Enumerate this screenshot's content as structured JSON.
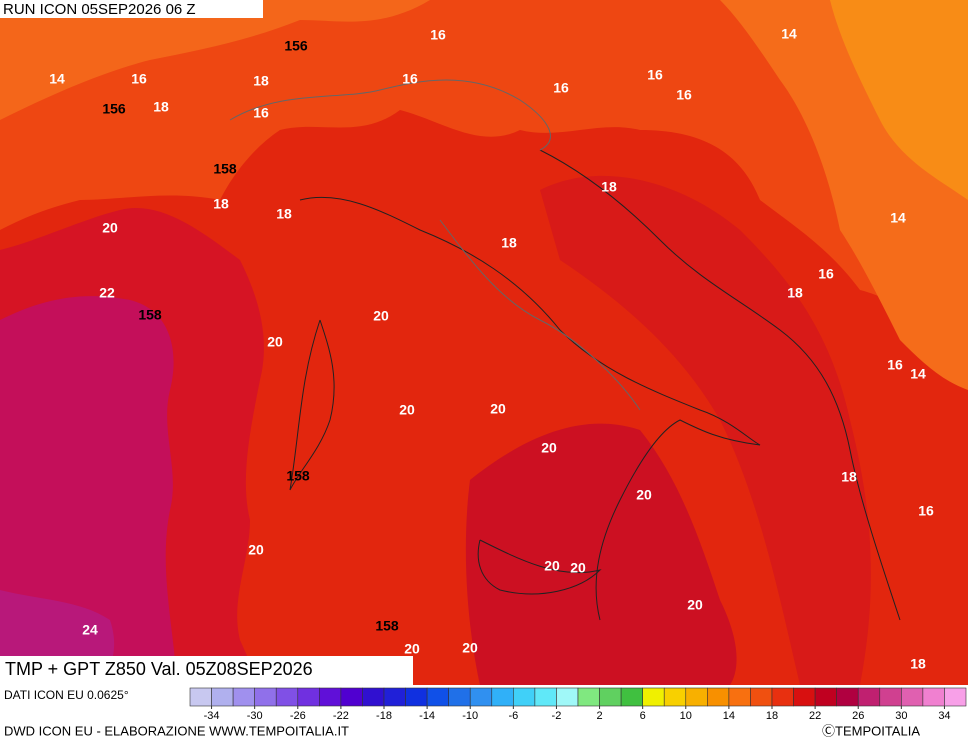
{
  "header": {
    "run": "RUN ICON 05SEP2026 06 Z"
  },
  "map": {
    "title": "TMP + GPT Z850 Val. 05Z08SEP2026",
    "contour_labels": [
      16,
      14,
      156,
      14,
      16,
      18,
      16,
      16,
      16,
      16,
      156,
      18,
      16,
      158,
      18,
      18,
      18,
      14,
      20,
      18,
      16,
      22,
      18,
      158,
      20,
      20,
      16,
      14,
      20,
      20,
      20,
      158,
      18,
      20,
      16,
      20,
      20,
      20,
      20,
      24,
      158,
      20,
      20,
      18
    ]
  },
  "footer": {
    "source": "DATI ICON EU 0.0625°",
    "credit": "DWD ICON EU - ELABORAZIONE WWW.TEMPOITALIA.IT",
    "copyright": "ⒸTEMPOITALIA"
  },
  "colorbar": {
    "range": [
      -36,
      36
    ],
    "ticks": [
      -34,
      -30,
      -26,
      -22,
      -18,
      -14,
      -10,
      -6,
      -2,
      2,
      6,
      10,
      14,
      18,
      22,
      26,
      30,
      34
    ],
    "colors": [
      "#c8c8f0",
      "#b0b0ee",
      "#a090ee",
      "#9070ea",
      "#8050e6",
      "#7030e0",
      "#6010d8",
      "#5000d0",
      "#3010d0",
      "#2020d8",
      "#1030e0",
      "#1050e8",
      "#2070e8",
      "#3090f0",
      "#30b0f8",
      "#40d0f8",
      "#60e8f8",
      "#a0f8f8",
      "#80e880",
      "#60d060",
      "#40c040",
      "#f0f000",
      "#f8d000",
      "#f8b000",
      "#f89000",
      "#f87010",
      "#f05010",
      "#e83010",
      "#d81010",
      "#c00020",
      "#b00040",
      "#c02070",
      "#d04090",
      "#e060b0",
      "#f080d0",
      "#f8a0e8"
    ]
  }
}
